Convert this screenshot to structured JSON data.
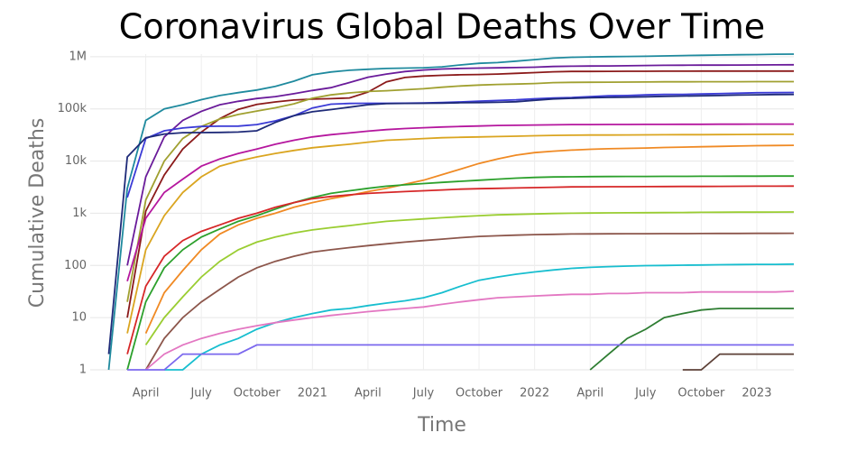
{
  "chart_data": {
    "type": "line",
    "title": "Coronavirus Global Deaths Over Time",
    "x_label": "Time",
    "y_label": "Cumulative Deaths",
    "log": true,
    "grid": true,
    "x": [
      "2020-01",
      "2020-02",
      "2020-03",
      "2020-04",
      "2020-05",
      "2020-06",
      "2020-07",
      "2020-08",
      "2020-09",
      "2020-10",
      "2020-11",
      "2020-12",
      "2021-01",
      "2021-02",
      "2021-03",
      "2021-04",
      "2021-05",
      "2021-06",
      "2021-07",
      "2021-08",
      "2021-09",
      "2021-10",
      "2021-11",
      "2021-12",
      "2022-01",
      "2022-02",
      "2022-03",
      "2022-04",
      "2022-05",
      "2022-06",
      "2022-07",
      "2022-08",
      "2022-09",
      "2022-10",
      "2022-11",
      "2022-12",
      "2023-01",
      "2023-02",
      "2023-03"
    ],
    "xlim": [
      "2020-01",
      "2023-03"
    ],
    "xticks": [
      {
        "value": "2020-04",
        "label": "April"
      },
      {
        "value": "2020-07",
        "label": "July"
      },
      {
        "value": "2020-10",
        "label": "October"
      },
      {
        "value": "2021-01",
        "label": "2021"
      },
      {
        "value": "2021-04",
        "label": "April"
      },
      {
        "value": "2021-07",
        "label": "July"
      },
      {
        "value": "2021-10",
        "label": "October"
      },
      {
        "value": "2022-01",
        "label": "2022"
      },
      {
        "value": "2022-04",
        "label": "April"
      },
      {
        "value": "2022-07",
        "label": "July"
      },
      {
        "value": "2022-10",
        "label": "October"
      },
      {
        "value": "2023-01",
        "label": "2023"
      }
    ],
    "ylim": [
      1,
      1120000
    ],
    "yticks": [
      1,
      10,
      100,
      {
        "value": 1000,
        "label": "1k"
      },
      {
        "value": 10000,
        "label": "10k"
      },
      {
        "value": 100000,
        "label": "100k"
      },
      {
        "value": 1000000,
        "label": "1M"
      }
    ],
    "series": [
      {
        "color": "#1f8a9e",
        "values": [
          null,
          1,
          3000,
          60000,
          100000,
          120000,
          150000,
          180000,
          205000,
          230000,
          270000,
          340000,
          450000,
          510000,
          550000,
          575000,
          595000,
          605000,
          615000,
          640000,
          695000,
          745000,
          770000,
          820000,
          880000,
          940000,
          975000,
          990000,
          1000000,
          1010000,
          1020000,
          1035000,
          1050000,
          1065000,
          1075000,
          1090000,
          1100000,
          1115000,
          1120000
        ]
      },
      {
        "color": "#6a1b9a",
        "values": [
          null,
          null,
          100,
          5000,
          29000,
          60000,
          90000,
          120000,
          140000,
          158000,
          172000,
          195000,
          225000,
          255000,
          320000,
          405000,
          465000,
          520000,
          555000,
          580000,
          595000,
          605000,
          612000,
          618000,
          630000,
          648000,
          658000,
          662000,
          665000,
          670000,
          678000,
          684000,
          686000,
          688000,
          690000,
          693000,
          696000,
          698000,
          699000
        ]
      },
      {
        "color": "#8b1a1a",
        "values": [
          null,
          null,
          10,
          1100,
          5400,
          17000,
          36000,
          65000,
          98000,
          122000,
          136000,
          148000,
          154000,
          157000,
          162000,
          210000,
          330000,
          400000,
          425000,
          440000,
          450000,
          455000,
          465000,
          480000,
          495000,
          514000,
          521000,
          522000,
          524000,
          525000,
          526000,
          527000,
          528000,
          529000,
          530000,
          530500,
          530700,
          530800,
          530800
        ]
      },
      {
        "color": "#a0a030",
        "values": [
          null,
          null,
          20,
          1800,
          10000,
          27000,
          46000,
          64000,
          78000,
          91000,
          105000,
          125000,
          160000,
          185000,
          202000,
          216000,
          223000,
          233000,
          243000,
          260000,
          275000,
          286000,
          294000,
          299000,
          306000,
          318000,
          322000,
          324000,
          325000,
          326000,
          328000,
          330000,
          330500,
          331000,
          331500,
          332000,
          332500,
          333000,
          333200
        ]
      },
      {
        "color": "#3b3bd6",
        "values": [
          null,
          null,
          2000,
          27000,
          38000,
          43000,
          46000,
          46500,
          46800,
          50000,
          59000,
          74000,
          104000,
          123000,
          127000,
          128000,
          128000,
          128500,
          129500,
          132000,
          136000,
          141000,
          145000,
          149000,
          156000,
          162000,
          165000,
          172000,
          178000,
          180000,
          185000,
          189000,
          190000,
          193000,
          196000,
          200000,
          204000,
          205000,
          206000
        ]
      },
      {
        "color": "#1e2a78",
        "values": [
          null,
          2,
          12000,
          28000,
          33000,
          35000,
          35100,
          35400,
          35900,
          38000,
          55000,
          74000,
          88000,
          97000,
          108000,
          120000,
          126000,
          127500,
          128000,
          129000,
          131000,
          132000,
          133800,
          137000,
          146000,
          155000,
          159500,
          163000,
          166000,
          168000,
          170500,
          174000,
          176000,
          178000,
          180500,
          184000,
          186000,
          188000,
          189000
        ]
      },
      {
        "color": "#b5179e",
        "values": [
          null,
          null,
          50,
          800,
          2500,
          4500,
          8000,
          11000,
          14000,
          17000,
          21000,
          25000,
          29000,
          32000,
          34500,
          37500,
          40000,
          42000,
          43500,
          45000,
          46000,
          47000,
          48000,
          48500,
          49000,
          49500,
          50000,
          50100,
          50200,
          50300,
          50400,
          50500,
          50600,
          50700,
          50800,
          50900,
          51000,
          51000,
          51100
        ]
      },
      {
        "color": "#daa520",
        "values": [
          null,
          null,
          5,
          200,
          900,
          2500,
          5000,
          8000,
          10000,
          12000,
          14000,
          16000,
          18000,
          19500,
          21000,
          23000,
          25000,
          26000,
          27000,
          28000,
          28500,
          29000,
          29500,
          30000,
          30500,
          31000,
          31300,
          31500,
          31600,
          31700,
          31800,
          31900,
          32000,
          32100,
          32200,
          32300,
          32400,
          32500,
          32500
        ]
      },
      {
        "color": "#f08a24",
        "values": [
          null,
          null,
          null,
          5,
          30,
          80,
          200,
          400,
          600,
          800,
          1000,
          1300,
          1600,
          1900,
          2200,
          2600,
          3000,
          3600,
          4300,
          5500,
          7000,
          9000,
          11000,
          13000,
          14500,
          15500,
          16200,
          16800,
          17200,
          17500,
          17800,
          18200,
          18500,
          18800,
          19100,
          19400,
          19700,
          19900,
          20000
        ]
      },
      {
        "color": "#2ca02c",
        "values": [
          null,
          null,
          1,
          20,
          90,
          200,
          350,
          500,
          700,
          900,
          1200,
          1600,
          2000,
          2400,
          2700,
          3000,
          3300,
          3500,
          3700,
          3900,
          4100,
          4300,
          4500,
          4700,
          4850,
          4950,
          5000,
          5030,
          5050,
          5070,
          5080,
          5090,
          5100,
          5110,
          5120,
          5130,
          5140,
          5150,
          5150
        ]
      },
      {
        "color": "#d62728",
        "values": [
          null,
          null,
          2,
          40,
          150,
          300,
          450,
          600,
          800,
          1000,
          1300,
          1600,
          1900,
          2100,
          2250,
          2400,
          2500,
          2600,
          2700,
          2800,
          2900,
          2950,
          3000,
          3050,
          3100,
          3150,
          3200,
          3210,
          3220,
          3230,
          3240,
          3250,
          3260,
          3270,
          3280,
          3290,
          3300,
          3300,
          3310
        ]
      },
      {
        "color": "#9acd32",
        "values": [
          null,
          null,
          null,
          3,
          10,
          25,
          60,
          120,
          200,
          280,
          350,
          420,
          480,
          530,
          580,
          640,
          700,
          740,
          780,
          820,
          860,
          900,
          930,
          950,
          970,
          990,
          1000,
          1010,
          1015,
          1020,
          1025,
          1030,
          1035,
          1040,
          1045,
          1050,
          1050,
          1055,
          1060
        ]
      },
      {
        "color": "#8c564b",
        "values": [
          null,
          null,
          null,
          1,
          4,
          10,
          20,
          35,
          60,
          90,
          120,
          150,
          180,
          200,
          220,
          240,
          260,
          280,
          300,
          320,
          340,
          360,
          370,
          380,
          390,
          395,
          400,
          402,
          404,
          405,
          406,
          407,
          408,
          409,
          410,
          411,
          412,
          412,
          413
        ]
      },
      {
        "color": "#17becf",
        "values": [
          null,
          null,
          null,
          null,
          1,
          1,
          2,
          3,
          4,
          6,
          8,
          10,
          12,
          14,
          15,
          17,
          19,
          21,
          24,
          30,
          40,
          52,
          60,
          68,
          75,
          82,
          88,
          92,
          95,
          97,
          99,
          100,
          101,
          102,
          103,
          104,
          105,
          105,
          106
        ]
      },
      {
        "color": "#e377c2",
        "values": [
          null,
          null,
          null,
          1,
          2,
          3,
          4,
          5,
          6,
          7,
          8,
          9,
          10,
          11,
          12,
          13,
          14,
          15,
          16,
          18,
          20,
          22,
          24,
          25,
          26,
          27,
          28,
          28,
          29,
          29,
          30,
          30,
          30,
          31,
          31,
          31,
          31,
          31,
          32
        ]
      },
      {
        "color": "#2e7d32",
        "values": [
          null,
          null,
          null,
          null,
          null,
          null,
          null,
          null,
          null,
          null,
          null,
          null,
          null,
          null,
          null,
          null,
          null,
          null,
          null,
          null,
          null,
          null,
          null,
          null,
          null,
          null,
          null,
          1,
          2,
          4,
          6,
          10,
          12,
          14,
          15,
          15,
          15,
          15,
          15
        ]
      },
      {
        "color": "#7b68ee",
        "values": [
          null,
          null,
          1,
          1,
          1,
          2,
          2,
          2,
          2,
          3,
          3,
          3,
          3,
          3,
          3,
          3,
          3,
          3,
          3,
          3,
          3,
          3,
          3,
          3,
          3,
          3,
          3,
          3,
          3,
          3,
          3,
          3,
          3,
          3,
          3,
          3,
          3,
          3,
          3
        ]
      },
      {
        "color": "#5d4037",
        "values": [
          null,
          null,
          null,
          null,
          null,
          null,
          null,
          null,
          null,
          null,
          null,
          null,
          null,
          null,
          null,
          null,
          null,
          null,
          null,
          null,
          null,
          null,
          null,
          null,
          null,
          null,
          null,
          null,
          null,
          null,
          null,
          null,
          1,
          1,
          2,
          2,
          2,
          2,
          2
        ]
      }
    ]
  }
}
